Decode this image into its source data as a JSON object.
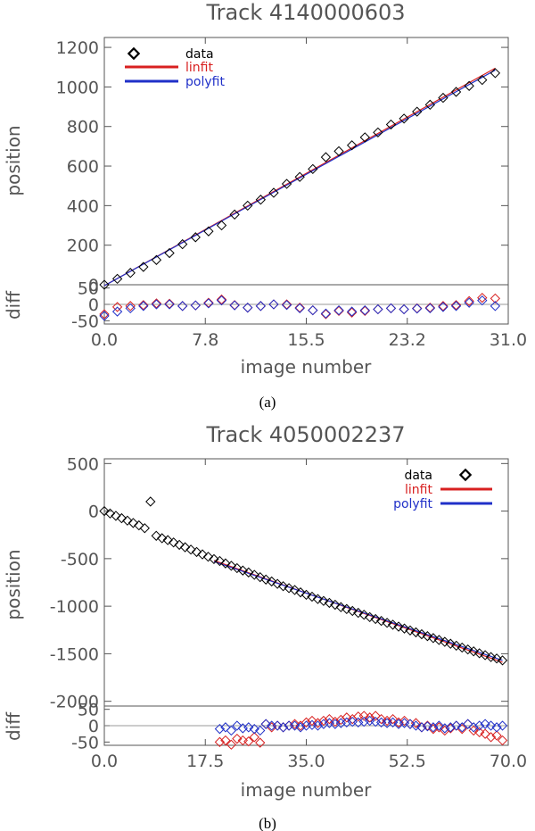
{
  "figure": {
    "captions": [
      "(a)",
      "(b)"
    ]
  },
  "chart_data": [
    {
      "type": "scatter",
      "title": "Track 4140000603",
      "xlabel": "image number",
      "ylabel": "position",
      "diff_label": "diff",
      "xlim": [
        0,
        31
      ],
      "ylim": [
        0,
        1250
      ],
      "diff_ylim": [
        -60,
        60
      ],
      "xticks": [
        "0.0",
        "7.8",
        "15.5",
        "23.2",
        "31.0"
      ],
      "xtick_values": [
        0,
        7.75,
        15.5,
        23.25,
        31
      ],
      "yticks": [
        "0",
        "200",
        "400",
        "600",
        "800",
        "1000",
        "1200"
      ],
      "ytick_values": [
        0,
        200,
        400,
        600,
        800,
        1000,
        1200
      ],
      "diff_yticks": [
        "50",
        "0",
        "-50"
      ],
      "diff_ytick_values": [
        50,
        0,
        -50
      ],
      "legend": {
        "placement": "top-left",
        "entries": [
          "data",
          "linfit",
          "polyfit"
        ]
      },
      "colors": {
        "data": "#000000",
        "linfit": "#d82020",
        "polyfit": "#2030c8",
        "axis": "#555555"
      },
      "series": [
        {
          "name": "data",
          "x": [
            0,
            1,
            2,
            3,
            4,
            5,
            6,
            7,
            8,
            9,
            10,
            11,
            12,
            13,
            14,
            15,
            16,
            17,
            18,
            19,
            20,
            21,
            22,
            23,
            24,
            25,
            26,
            27,
            28,
            29,
            30
          ],
          "y": [
            0,
            30,
            60,
            90,
            125,
            160,
            205,
            240,
            270,
            300,
            355,
            400,
            430,
            465,
            510,
            545,
            585,
            645,
            675,
            705,
            745,
            770,
            810,
            840,
            875,
            910,
            945,
            975,
            1005,
            1035,
            1070
          ]
        },
        {
          "name": "linfit",
          "x": [
            0,
            30
          ],
          "y": [
            -5,
            1095
          ]
        },
        {
          "name": "polyfit",
          "x": [
            0,
            30
          ],
          "y": [
            -5,
            1085
          ]
        }
      ],
      "diff_series": [
        {
          "name": "linfit",
          "x": [
            0,
            1,
            2,
            3,
            4,
            5,
            6,
            7,
            8,
            9,
            10,
            11,
            12,
            13,
            14,
            15,
            16,
            17,
            18,
            19,
            20,
            21,
            22,
            23,
            24,
            25,
            26,
            27,
            28,
            29,
            30
          ],
          "y": [
            -30,
            -8,
            -5,
            -2,
            3,
            2,
            -5,
            -3,
            5,
            15,
            -2,
            -10,
            -5,
            0,
            0,
            -10,
            -18,
            -30,
            -20,
            -25,
            -20,
            -15,
            -12,
            -15,
            -12,
            -10,
            -5,
            -2,
            10,
            20,
            18
          ]
        },
        {
          "name": "polyfit",
          "x": [
            0,
            1,
            2,
            3,
            4,
            5,
            6,
            7,
            8,
            9,
            10,
            11,
            12,
            13,
            14,
            15,
            16,
            17,
            18,
            19,
            20,
            21,
            22,
            23,
            24,
            25,
            26,
            27,
            28,
            29,
            30
          ],
          "y": [
            -35,
            -22,
            -12,
            -5,
            0,
            0,
            -5,
            -3,
            3,
            12,
            -3,
            -10,
            -5,
            0,
            -2,
            -12,
            -18,
            -28,
            -18,
            -22,
            -18,
            -15,
            -12,
            -15,
            -13,
            -12,
            -8,
            -5,
            5,
            12,
            -5
          ]
        }
      ]
    },
    {
      "type": "scatter",
      "title": "Track 4050002237",
      "xlabel": "image number",
      "ylabel": "position",
      "diff_label": "diff",
      "xlim": [
        0,
        70
      ],
      "ylim": [
        -2050,
        550
      ],
      "diff_ylim": [
        -60,
        60
      ],
      "xticks": [
        "0.0",
        "17.5",
        "35.0",
        "52.5",
        "70.0"
      ],
      "xtick_values": [
        0,
        17.5,
        35,
        52.5,
        70
      ],
      "yticks": [
        "500",
        "0",
        "-500",
        "-1000",
        "-1500",
        "-2000"
      ],
      "ytick_values": [
        500,
        0,
        -500,
        -1000,
        -1500,
        -2000
      ],
      "diff_yticks": [
        "50",
        "0",
        "-50"
      ],
      "diff_ytick_values": [
        50,
        0,
        -50
      ],
      "legend": {
        "placement": "top-right",
        "entries": [
          "data",
          "linfit",
          "polyfit"
        ]
      },
      "colors": {
        "data": "#000000",
        "linfit": "#d82020",
        "polyfit": "#2030c8",
        "axis": "#555555"
      },
      "series": [
        {
          "name": "data",
          "x": [
            0,
            1,
            2,
            3,
            4,
            5,
            6,
            7,
            8,
            9,
            10,
            11,
            12,
            13,
            14,
            15,
            16,
            17,
            18,
            19,
            20,
            21,
            22,
            23,
            24,
            25,
            26,
            27,
            28,
            29,
            30,
            31,
            32,
            33,
            34,
            35,
            36,
            37,
            38,
            39,
            40,
            41,
            42,
            43,
            44,
            45,
            46,
            47,
            48,
            49,
            50,
            51,
            52,
            53,
            54,
            55,
            56,
            57,
            58,
            59,
            60,
            61,
            62,
            63,
            64,
            65,
            66,
            67,
            68,
            69
          ],
          "y": [
            0,
            -25,
            -50,
            -75,
            -100,
            -125,
            -150,
            -180,
            100,
            -260,
            -285,
            -305,
            -330,
            -355,
            -380,
            -405,
            -430,
            -455,
            -480,
            -505,
            -525,
            -550,
            -575,
            -600,
            -625,
            -645,
            -670,
            -695,
            -720,
            -740,
            -765,
            -790,
            -810,
            -830,
            -855,
            -880,
            -900,
            -925,
            -945,
            -965,
            -985,
            -1010,
            -1030,
            -1050,
            -1070,
            -1090,
            -1115,
            -1135,
            -1155,
            -1175,
            -1195,
            -1215,
            -1235,
            -1255,
            -1275,
            -1295,
            -1315,
            -1335,
            -1355,
            -1375,
            -1395,
            -1415,
            -1435,
            -1455,
            -1475,
            -1495,
            -1515,
            -1535,
            -1550,
            -1570
          ]
        },
        {
          "name": "linfit",
          "x": [
            19,
            69
          ],
          "y": [
            -520,
            -1590
          ]
        },
        {
          "name": "polyfit",
          "x": [
            19,
            69
          ],
          "y": [
            -530,
            -1570
          ]
        }
      ],
      "diff_series": [
        {
          "name": "linfit",
          "x": [
            20,
            21,
            22,
            23,
            24,
            25,
            26,
            27,
            28,
            29,
            30,
            31,
            32,
            33,
            34,
            35,
            36,
            37,
            38,
            39,
            40,
            41,
            42,
            43,
            44,
            45,
            46,
            47,
            48,
            49,
            50,
            51,
            52,
            53,
            54,
            55,
            56,
            57,
            58,
            59,
            60,
            61,
            62,
            63,
            64,
            65,
            66,
            67,
            68,
            69
          ],
          "y": [
            -50,
            -45,
            -58,
            -40,
            -45,
            -48,
            -35,
            -52,
            5,
            -5,
            0,
            -5,
            0,
            5,
            0,
            10,
            15,
            8,
            15,
            20,
            12,
            18,
            25,
            20,
            28,
            30,
            25,
            30,
            20,
            15,
            20,
            10,
            15,
            5,
            8,
            -5,
            0,
            -10,
            -5,
            -15,
            -8,
            0,
            -10,
            5,
            -15,
            -20,
            -25,
            -35,
            -30,
            -45
          ]
        },
        {
          "name": "polyfit",
          "x": [
            20,
            21,
            22,
            23,
            24,
            25,
            26,
            27,
            28,
            29,
            30,
            31,
            32,
            33,
            34,
            35,
            36,
            37,
            38,
            39,
            40,
            41,
            42,
            43,
            44,
            45,
            46,
            47,
            48,
            49,
            50,
            51,
            52,
            53,
            54,
            55,
            56,
            57,
            58,
            59,
            60,
            61,
            62,
            63,
            64,
            65,
            66,
            67,
            68,
            69
          ],
          "y": [
            -10,
            -5,
            -15,
            0,
            -8,
            -5,
            -10,
            -15,
            5,
            0,
            0,
            -5,
            0,
            0,
            -5,
            0,
            2,
            0,
            5,
            8,
            5,
            8,
            10,
            12,
            10,
            12,
            15,
            12,
            10,
            8,
            10,
            5,
            8,
            5,
            0,
            -5,
            -2,
            -5,
            0,
            -8,
            -5,
            0,
            -5,
            5,
            -5,
            0,
            5,
            0,
            -5,
            0
          ]
        }
      ]
    }
  ]
}
